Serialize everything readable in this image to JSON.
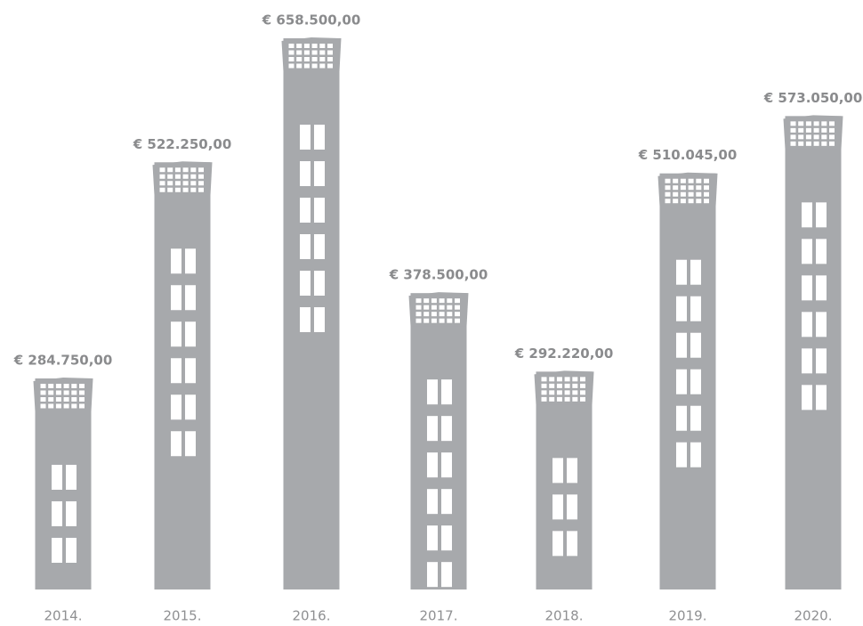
{
  "chart_data": {
    "type": "bar",
    "categories": [
      "2014.",
      "2015.",
      "2016.",
      "2017.",
      "2018.",
      "2019.",
      "2020."
    ],
    "values": [
      284750,
      522250,
      658500,
      378500,
      292220,
      510045,
      573050
    ],
    "value_labels": [
      "€ 284.750,00",
      "€ 522.250,00",
      "€ 658.500,00",
      "€ 378.500,00",
      "€ 292.220,00",
      "€ 510.045,00",
      "€ 573.050,00"
    ],
    "color": "#a7a9ac"
  }
}
